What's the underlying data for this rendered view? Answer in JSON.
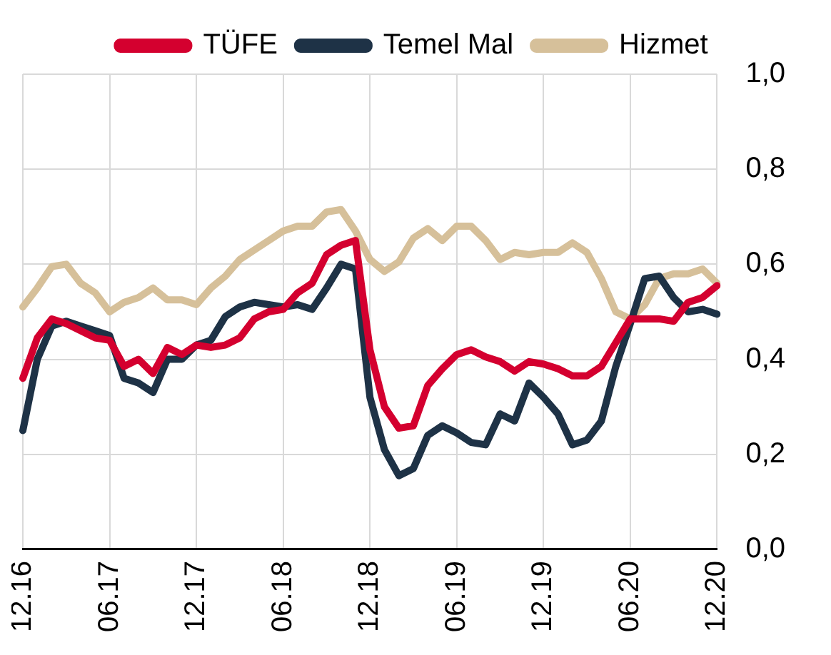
{
  "chart_data": {
    "type": "line",
    "categories": [
      "12.16",
      null,
      null,
      null,
      null,
      null,
      "06.17",
      null,
      null,
      null,
      null,
      null,
      "12.17",
      null,
      null,
      null,
      null,
      null,
      "06.18",
      null,
      null,
      null,
      null,
      null,
      "12.18",
      null,
      null,
      null,
      null,
      null,
      "06.19",
      null,
      null,
      null,
      null,
      null,
      "12.19",
      null,
      null,
      null,
      null,
      null,
      "06.20",
      null,
      null,
      null,
      null,
      null,
      "12.20"
    ],
    "series": [
      {
        "name": "TÜFE",
        "color": "#d4002f",
        "values": [
          0.36,
          0.445,
          0.485,
          0.475,
          0.46,
          0.445,
          0.44,
          0.385,
          0.4,
          0.37,
          0.425,
          0.41,
          0.43,
          0.425,
          0.43,
          0.445,
          0.485,
          0.5,
          0.505,
          0.54,
          0.56,
          0.62,
          0.64,
          0.65,
          0.42,
          0.3,
          0.255,
          0.26,
          0.345,
          0.38,
          0.41,
          0.42,
          0.405,
          0.395,
          0.375,
          0.395,
          0.39,
          0.38,
          0.365,
          0.365,
          0.385,
          0.435,
          0.485,
          0.485,
          0.485,
          0.48,
          0.52,
          0.53,
          0.555
        ]
      },
      {
        "name": "Temel Mal",
        "color": "#1e3246",
        "values": [
          0.25,
          0.4,
          0.47,
          0.48,
          0.47,
          0.46,
          0.45,
          0.36,
          0.35,
          0.33,
          0.4,
          0.4,
          0.43,
          0.44,
          0.49,
          0.51,
          0.52,
          0.515,
          0.51,
          0.515,
          0.505,
          0.55,
          0.6,
          0.59,
          0.32,
          0.21,
          0.155,
          0.17,
          0.24,
          0.26,
          0.245,
          0.225,
          0.22,
          0.285,
          0.27,
          0.35,
          0.32,
          0.285,
          0.22,
          0.23,
          0.27,
          0.385,
          0.475,
          0.57,
          0.575,
          0.53,
          0.5,
          0.505,
          0.495
        ]
      },
      {
        "name": "Hizmet",
        "color": "#d6c09a",
        "values": [
          0.51,
          0.55,
          0.595,
          0.6,
          0.56,
          0.54,
          0.5,
          0.52,
          0.53,
          0.55,
          0.525,
          0.525,
          0.515,
          0.55,
          0.575,
          0.61,
          0.63,
          0.65,
          0.67,
          0.68,
          0.68,
          0.71,
          0.715,
          0.67,
          0.61,
          0.585,
          0.605,
          0.655,
          0.675,
          0.65,
          0.68,
          0.68,
          0.65,
          0.61,
          0.625,
          0.62,
          0.625,
          0.625,
          0.645,
          0.625,
          0.57,
          0.5,
          0.485,
          0.515,
          0.57,
          0.58,
          0.58,
          0.59,
          0.56
        ]
      }
    ],
    "ylim": [
      0,
      1
    ],
    "yticks": [
      {
        "value": 0,
        "label": "0,0"
      },
      {
        "value": 0.2,
        "label": "0,2"
      },
      {
        "value": 0.4,
        "label": "0,4"
      },
      {
        "value": 0.6,
        "label": "0,6"
      },
      {
        "value": 0.8,
        "label": "0,8"
      },
      {
        "value": 1,
        "label": "1,0"
      }
    ],
    "grid": true,
    "legend": "top",
    "marker": "none",
    "line_style": "solid"
  }
}
